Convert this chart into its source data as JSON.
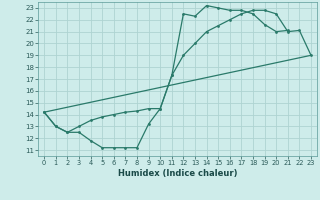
{
  "xlabel": "Humidex (Indice chaleur)",
  "bg_color": "#ceecea",
  "grid_color": "#aed4d2",
  "line_color": "#2a7a6a",
  "xlim": [
    -0.5,
    23.5
  ],
  "ylim": [
    10.5,
    23.5
  ],
  "xticks": [
    0,
    1,
    2,
    3,
    4,
    5,
    6,
    7,
    8,
    9,
    10,
    11,
    12,
    13,
    14,
    15,
    16,
    17,
    18,
    19,
    20,
    21,
    22,
    23
  ],
  "yticks": [
    11,
    12,
    13,
    14,
    15,
    16,
    17,
    18,
    19,
    20,
    21,
    22,
    23
  ],
  "line1_x": [
    0,
    1,
    2,
    3,
    4,
    5,
    6,
    7,
    8,
    9,
    10,
    11,
    12,
    13,
    14,
    15,
    16,
    17,
    18,
    19,
    20,
    21
  ],
  "line1_y": [
    14.2,
    13.0,
    12.5,
    12.5,
    11.8,
    11.2,
    11.2,
    11.2,
    11.2,
    13.2,
    14.5,
    17.3,
    22.5,
    22.3,
    23.2,
    23.0,
    22.8,
    22.8,
    22.5,
    21.6,
    21.0,
    21.1
  ],
  "line2_x": [
    0,
    1,
    2,
    3,
    4,
    5,
    6,
    7,
    8,
    9,
    10,
    11,
    12,
    13,
    14,
    15,
    16,
    17,
    18,
    19,
    20,
    21,
    22,
    23
  ],
  "line2_y": [
    14.2,
    13.0,
    12.5,
    13.0,
    13.5,
    13.8,
    14.0,
    14.2,
    14.3,
    14.5,
    14.5,
    17.3,
    19.0,
    20.0,
    21.0,
    21.5,
    22.0,
    22.5,
    22.8,
    22.8,
    22.5,
    21.0,
    21.1,
    19.0
  ],
  "line3_x": [
    0,
    23
  ],
  "line3_y": [
    14.2,
    19.0
  ]
}
